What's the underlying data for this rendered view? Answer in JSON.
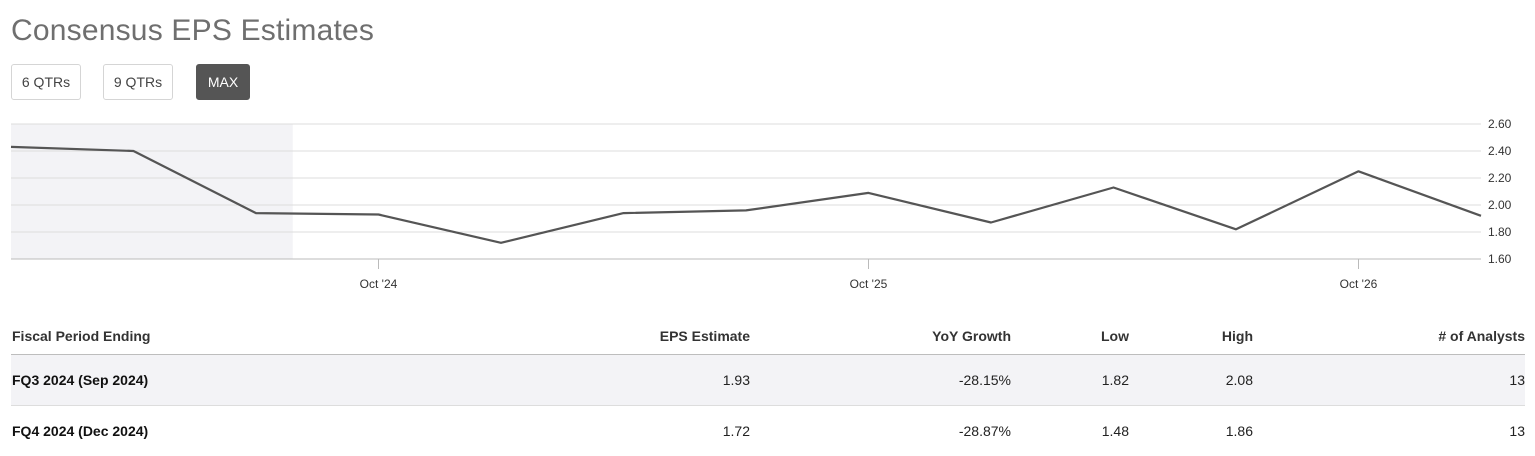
{
  "page": {
    "title": "Consensus EPS Estimates"
  },
  "range_tabs": [
    {
      "label": "6 QTRs",
      "active": false
    },
    {
      "label": "9 QTRs",
      "active": false
    },
    {
      "label": "MAX",
      "active": true
    }
  ],
  "chart_data": {
    "type": "line",
    "title": "",
    "xlabel": "",
    "ylabel": "",
    "x": [
      "Jan 2024",
      "Apr 2024",
      "Jul 2024",
      "Oct 2024",
      "Jan 2025",
      "Apr 2025",
      "Jul 2025",
      "Oct 2025",
      "Jan 2026",
      "Apr 2026",
      "Jul 2026",
      "Oct 2026",
      "Jan 2027"
    ],
    "series": [
      {
        "values": [
          2.43,
          2.4,
          1.94,
          1.93,
          1.72,
          1.94,
          1.96,
          2.09,
          1.87,
          2.13,
          1.82,
          2.25,
          1.92
        ]
      }
    ],
    "ylim": [
      1.6,
      2.6
    ],
    "y_ticks": [
      "2.60",
      "2.40",
      "2.20",
      "2.00",
      "1.80",
      "1.60"
    ],
    "x_ticks": [
      {
        "label": "Oct '24",
        "at": "Oct 2024"
      },
      {
        "label": "Oct '25",
        "at": "Oct 2025"
      },
      {
        "label": "Oct '26",
        "at": "Oct 2026"
      }
    ],
    "reported_through": "Jul 2024",
    "shaded_region": "reported quarters",
    "line_color": "#555555",
    "shade_color": "#f3f3f6",
    "grid": true,
    "legend": "none"
  },
  "table": {
    "columns": [
      "Fiscal Period Ending",
      "EPS Estimate",
      "YoY Growth",
      "Low",
      "High",
      "# of Analysts"
    ],
    "rows": [
      {
        "period": "FQ3 2024 (Sep 2024)",
        "eps": "1.93",
        "yoy": "-28.15%",
        "low": "1.82",
        "high": "2.08",
        "analysts": "13"
      },
      {
        "period": "FQ4 2024 (Dec 2024)",
        "eps": "1.72",
        "yoy": "-28.87%",
        "low": "1.48",
        "high": "1.86",
        "analysts": "13"
      }
    ]
  }
}
